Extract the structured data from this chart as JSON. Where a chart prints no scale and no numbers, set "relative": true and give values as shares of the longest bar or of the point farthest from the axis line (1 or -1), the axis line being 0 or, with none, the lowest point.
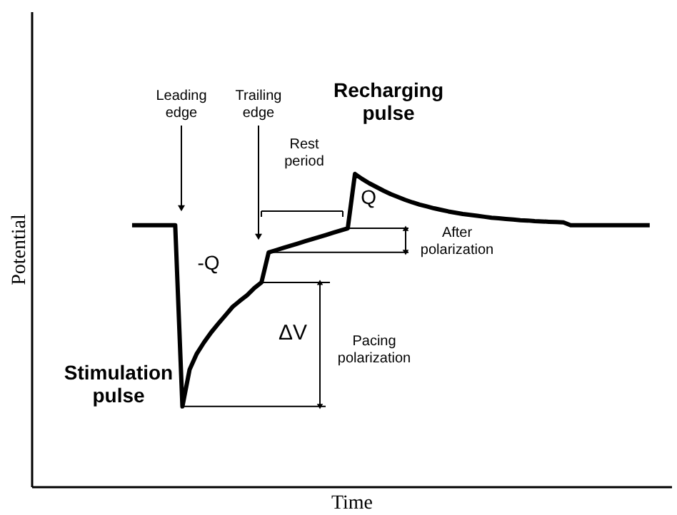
{
  "chart_data": {
    "type": "line",
    "relative": true,
    "color": "#000000",
    "xlabel": "Time",
    "ylabel": "Potential",
    "tick_labels": false,
    "categories": [
      null,
      null,
      null,
      null,
      null,
      null,
      null,
      null,
      null,
      null,
      null,
      null,
      null,
      null,
      null,
      null,
      null,
      null,
      null,
      null,
      null,
      null,
      null,
      null,
      null,
      null,
      null,
      null,
      null,
      null,
      null,
      null,
      null,
      null,
      null,
      null,
      null,
      null,
      null,
      null,
      null,
      null,
      null,
      null,
      null,
      null,
      null,
      null,
      null,
      null,
      null,
      null,
      null,
      null,
      null,
      null,
      null,
      null,
      null,
      null,
      null,
      null,
      null,
      null,
      null,
      null,
      null,
      null,
      null,
      null,
      null,
      null,
      null,
      null,
      null,
      null,
      null,
      null,
      null,
      null,
      null,
      null,
      null,
      null,
      null,
      null,
      null,
      null,
      null,
      null
    ],
    "values": [
      null,
      null,
      null,
      null,
      null,
      null,
      null,
      null,
      null,
      null,
      null,
      null,
      null,
      null,
      0.836,
      0.836,
      0.836,
      0.836,
      0.836,
      0.836,
      0.836,
      0.256,
      0.374,
      0.425,
      0.461,
      0.493,
      0.521,
      0.548,
      0.575,
      0.594,
      0.612,
      0.635,
      0.653,
      0.749,
      0.756,
      0.763,
      0.77,
      0.777,
      0.784,
      0.791,
      0.798,
      0.805,
      0.812,
      0.819,
      0.826,
      1.0,
      0.984,
      0.97,
      0.958,
      0.946,
      0.935,
      0.926,
      0.917,
      0.909,
      0.902,
      0.896,
      0.89,
      0.885,
      0.88,
      0.876,
      0.872,
      0.869,
      0.866,
      0.863,
      0.86,
      0.858,
      0.856,
      0.854,
      0.852,
      0.851,
      0.849,
      0.848,
      0.847,
      0.846,
      0.845,
      0.836,
      0.836,
      0.836,
      0.836,
      0.836,
      0.836,
      0.836,
      0.836,
      0.836,
      0.836,
      0.836,
      0.836,
      null,
      null,
      null
    ],
    "ref_lines": [
      {
        "axis": "y",
        "value": 0.256
      },
      {
        "axis": "y",
        "value": 0.653
      },
      {
        "axis": "y",
        "value": 0.826
      },
      {
        "axis": "y",
        "value": 0.749
      }
    ],
    "annotations": [
      "Leading edge",
      "Trailing edge",
      "Recharging pulse",
      "Rest period",
      "Q",
      "-Q",
      "After polarization",
      "ΔV",
      "Pacing polarization",
      "Stimulation pulse"
    ]
  }
}
